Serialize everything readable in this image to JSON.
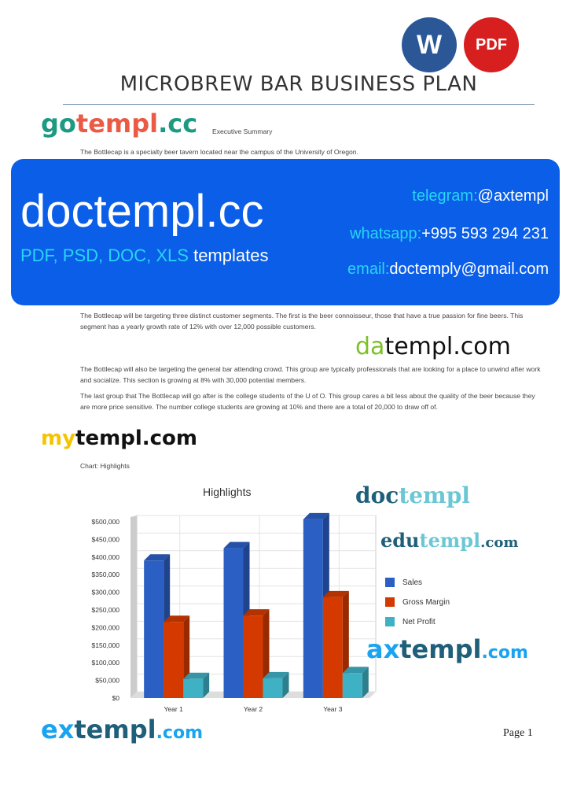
{
  "badges": {
    "word": "W",
    "pdf": "PDF",
    "word_color": "#2b5797",
    "pdf_color": "#d71f1f"
  },
  "document": {
    "title": "MICROBREW BAR BUSINESS PLAN",
    "section_heading": "Executive Summary",
    "intro": "The Bottlecap is a specialty beer tavern located near the campus of the University of Oregon.",
    "paragraphs": [
      "The Bottlecap will be targeting three distinct customer segments. The first is the beer connoisseur, those that have a true passion for fine beers. This segment has a yearly growth rate of 12% with over 12,000 possible customers.",
      "The Bottlecap will also be targeting the general bar attending crowd. This group are typically professionals that are looking for a place to unwind after work and socialize. This section is growing at 8% with 30,000 potential members.",
      "The last group that The Bottlecap will go after is the college students of the U of O. This group cares a bit less about the quality of the beer because they are more price sensitive. The number college students are growing at 10% and there are a total of 20,000 to draw off of."
    ],
    "chart_caption": "Chart: Highlights",
    "page_label": "Page 1"
  },
  "banner": {
    "brand": "doctempl.cc",
    "formats": "PDF, PSD, DOC, XLS",
    "templates": "templates",
    "telegram_label": "telegram:",
    "telegram": "@axtempl",
    "whatsapp_label": "whatsapp:",
    "whatsapp": "+995 593 294 231",
    "email_label": "email:",
    "email": "doctemply@gmail.com"
  },
  "watermarks": {
    "gotempl_a": "go",
    "gotempl_b": "templ",
    "gotempl_c": ".cc",
    "datempl_a": "da",
    "datempl_b": "templ.com",
    "mytempl_a": "my",
    "mytempl_b": "templ.com",
    "doctempl_a": "doc",
    "doctempl_b": "templ",
    ".com": ".com",
    "edutempl_a": "edu",
    "edutempl_b": "templ",
    "edutempl_c": ".com",
    "axtempl_a": "ax",
    "axtempl_b": "templ",
    "axtempl_c": ".com",
    "extempl_a": "ex",
    "extempl_b": "templ",
    "extempl_c": ".com"
  },
  "chart_data": {
    "type": "bar",
    "style": "3d-clustered",
    "title": "Highlights",
    "categories": [
      "Year 1",
      "Year 2",
      "Year 3"
    ],
    "series": [
      {
        "name": "Sales",
        "values": [
          390000,
          425000,
          507000
        ],
        "color": "#2b5fc4"
      },
      {
        "name": "Gross Margin",
        "values": [
          216000,
          234000,
          286000
        ],
        "color": "#d43a00"
      },
      {
        "name": "Net Profit",
        "values": [
          54000,
          56000,
          71000
        ],
        "color": "#3fb1c4"
      }
    ],
    "ylim": [
      0,
      500000
    ],
    "yticks": [
      "$0",
      "$50,000",
      "$100,000",
      "$150,000",
      "$200,000",
      "$250,000",
      "$300,000",
      "$350,000",
      "$400,000",
      "$450,000",
      "$500,000"
    ],
    "grid": true,
    "legend": "right"
  }
}
